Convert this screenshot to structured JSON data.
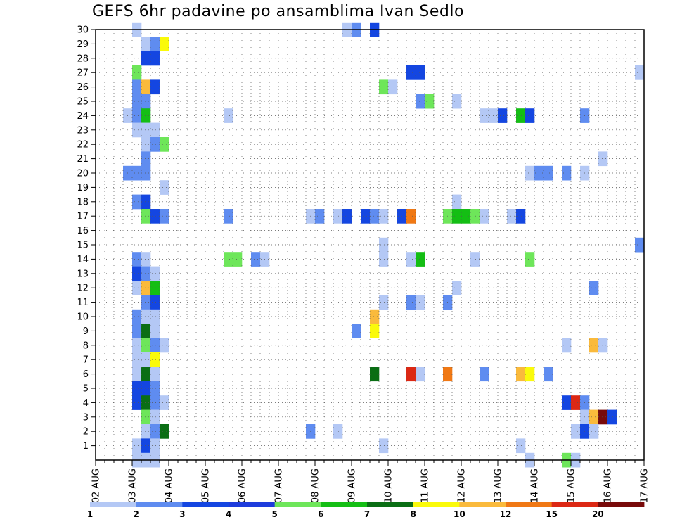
{
  "chart_data": {
    "type": "heatmap",
    "title": "GEFS 6hr padavine po ansamblima Ivan Sedlo",
    "xlabel": "",
    "ylabel": "",
    "x_ticks": [
      "02 AUG",
      "03 AUG",
      "04 AUG",
      "05 AUG",
      "06 AUG",
      "07 AUG",
      "08 AUG",
      "09 AUG",
      "10 AUG",
      "11 AUG",
      "12 AUG",
      "13 AUG",
      "14 AUG",
      "15 AUG",
      "16 AUG",
      "17 AUG"
    ],
    "x_range": [
      "02 AUG 00z",
      "17 AUG 00z"
    ],
    "y_ticks": [
      1,
      2,
      3,
      4,
      5,
      6,
      7,
      8,
      9,
      10,
      11,
      12,
      13,
      14,
      15,
      16,
      17,
      18,
      19,
      20,
      21,
      22,
      23,
      24,
      25,
      26,
      27,
      28,
      29,
      30
    ],
    "y_range": [
      0,
      30
    ],
    "time_step_hours": 6,
    "grid": "dotted",
    "colorbar": {
      "labels": [
        "1",
        "2",
        "3",
        "4",
        "5",
        "6",
        "7",
        "8",
        "10",
        "12",
        "15",
        "20"
      ],
      "colors": [
        "#b4c8f5",
        "#5f8cf0",
        "#1446e1",
        "#1e3cdc",
        "#6ee65a",
        "#14be14",
        "#0a6e14",
        "#fafa0a",
        "#faba3c",
        "#f07814",
        "#dc2814",
        "#780a0a"
      ]
    },
    "cells": [
      {
        "member": 30,
        "t": "03 AUG 00z",
        "level": 1
      },
      {
        "member": 30,
        "t": "08 AUG 18z",
        "level": 1
      },
      {
        "member": 30,
        "t": "09 AUG 00z",
        "level": 2
      },
      {
        "member": 30,
        "t": "09 AUG 12z",
        "level": 3
      },
      {
        "member": 29,
        "t": "03 AUG 06z",
        "level": 1
      },
      {
        "member": 29,
        "t": "03 AUG 12z",
        "level": 2
      },
      {
        "member": 29,
        "t": "03 AUG 18z",
        "level": 8
      },
      {
        "member": 28,
        "t": "03 AUG 06z",
        "level": 3
      },
      {
        "member": 28,
        "t": "03 AUG 12z",
        "level": 3
      },
      {
        "member": 27,
        "t": "03 AUG 00z",
        "level": 5
      },
      {
        "member": 27,
        "t": "10 AUG 12z",
        "level": 3
      },
      {
        "member": 27,
        "t": "10 AUG 18z",
        "level": 3
      },
      {
        "member": 27,
        "t": "16 AUG 18z",
        "level": 1
      },
      {
        "member": 26,
        "t": "03 AUG 00z",
        "level": 2
      },
      {
        "member": 26,
        "t": "03 AUG 06z",
        "level": 10
      },
      {
        "member": 26,
        "t": "03 AUG 12z",
        "level": 3
      },
      {
        "member": 26,
        "t": "09 AUG 18z",
        "level": 5
      },
      {
        "member": 26,
        "t": "10 AUG 00z",
        "level": 1
      },
      {
        "member": 25,
        "t": "03 AUG 00z",
        "level": 2
      },
      {
        "member": 25,
        "t": "03 AUG 06z",
        "level": 2
      },
      {
        "member": 25,
        "t": "10 AUG 18z",
        "level": 2
      },
      {
        "member": 25,
        "t": "11 AUG 00z",
        "level": 5
      },
      {
        "member": 25,
        "t": "11 AUG 18z",
        "level": 1
      },
      {
        "member": 24,
        "t": "02 AUG 18z",
        "level": 1
      },
      {
        "member": 24,
        "t": "03 AUG 00z",
        "level": 2
      },
      {
        "member": 24,
        "t": "03 AUG 06z",
        "level": 6
      },
      {
        "member": 24,
        "t": "05 AUG 12z",
        "level": 1
      },
      {
        "member": 24,
        "t": "12 AUG 12z",
        "level": 1
      },
      {
        "member": 24,
        "t": "12 AUG 18z",
        "level": 1
      },
      {
        "member": 24,
        "t": "13 AUG 00z",
        "level": 3
      },
      {
        "member": 24,
        "t": "13 AUG 12z",
        "level": 6
      },
      {
        "member": 24,
        "t": "13 AUG 18z",
        "level": 3
      },
      {
        "member": 24,
        "t": "15 AUG 06z",
        "level": 2
      },
      {
        "member": 23,
        "t": "03 AUG 00z",
        "level": 1
      },
      {
        "member": 23,
        "t": "03 AUG 06z",
        "level": 1
      },
      {
        "member": 23,
        "t": "03 AUG 12z",
        "level": 1
      },
      {
        "member": 22,
        "t": "03 AUG 06z",
        "level": 1
      },
      {
        "member": 22,
        "t": "03 AUG 12z",
        "level": 2
      },
      {
        "member": 22,
        "t": "03 AUG 18z",
        "level": 5
      },
      {
        "member": 21,
        "t": "03 AUG 06z",
        "level": 2
      },
      {
        "member": 21,
        "t": "15 AUG 18z",
        "level": 1
      },
      {
        "member": 20,
        "t": "02 AUG 18z",
        "level": 2
      },
      {
        "member": 20,
        "t": "03 AUG 00z",
        "level": 2
      },
      {
        "member": 20,
        "t": "03 AUG 06z",
        "level": 2
      },
      {
        "member": 20,
        "t": "13 AUG 18z",
        "level": 1
      },
      {
        "member": 20,
        "t": "14 AUG 00z",
        "level": 2
      },
      {
        "member": 20,
        "t": "14 AUG 06z",
        "level": 2
      },
      {
        "member": 20,
        "t": "14 AUG 18z",
        "level": 2
      },
      {
        "member": 20,
        "t": "15 AUG 06z",
        "level": 1
      },
      {
        "member": 19,
        "t": "03 AUG 18z",
        "level": 1
      },
      {
        "member": 18,
        "t": "03 AUG 00z",
        "level": 2
      },
      {
        "member": 18,
        "t": "03 AUG 06z",
        "level": 3
      },
      {
        "member": 18,
        "t": "11 AUG 18z",
        "level": 1
      },
      {
        "member": 17,
        "t": "03 AUG 06z",
        "level": 5
      },
      {
        "member": 17,
        "t": "03 AUG 12z",
        "level": 3
      },
      {
        "member": 17,
        "t": "03 AUG 18z",
        "level": 2
      },
      {
        "member": 17,
        "t": "05 AUG 12z",
        "level": 2
      },
      {
        "member": 17,
        "t": "07 AUG 18z",
        "level": 1
      },
      {
        "member": 17,
        "t": "08 AUG 00z",
        "level": 2
      },
      {
        "member": 17,
        "t": "08 AUG 12z",
        "level": 1
      },
      {
        "member": 17,
        "t": "08 AUG 18z",
        "level": 3
      },
      {
        "member": 17,
        "t": "09 AUG 06z",
        "level": 3
      },
      {
        "member": 17,
        "t": "09 AUG 12z",
        "level": 2
      },
      {
        "member": 17,
        "t": "09 AUG 18z",
        "level": 1
      },
      {
        "member": 17,
        "t": "10 AUG 06z",
        "level": 3
      },
      {
        "member": 17,
        "t": "10 AUG 12z",
        "level": 12
      },
      {
        "member": 17,
        "t": "11 AUG 12z",
        "level": 5
      },
      {
        "member": 17,
        "t": "11 AUG 18z",
        "level": 6
      },
      {
        "member": 17,
        "t": "12 AUG 00z",
        "level": 6
      },
      {
        "member": 17,
        "t": "12 AUG 06z",
        "level": 5
      },
      {
        "member": 17,
        "t": "12 AUG 12z",
        "level": 1
      },
      {
        "member": 17,
        "t": "13 AUG 06z",
        "level": 1
      },
      {
        "member": 17,
        "t": "13 AUG 12z",
        "level": 3
      },
      {
        "member": 15,
        "t": "09 AUG 18z",
        "level": 1
      },
      {
        "member": 15,
        "t": "16 AUG 18z",
        "level": 2
      },
      {
        "member": 14,
        "t": "03 AUG 00z",
        "level": 2
      },
      {
        "member": 14,
        "t": "03 AUG 06z",
        "level": 1
      },
      {
        "member": 14,
        "t": "05 AUG 12z",
        "level": 5
      },
      {
        "member": 14,
        "t": "05 AUG 18z",
        "level": 5
      },
      {
        "member": 14,
        "t": "06 AUG 06z",
        "level": 2
      },
      {
        "member": 14,
        "t": "06 AUG 12z",
        "level": 1
      },
      {
        "member": 14,
        "t": "09 AUG 18z",
        "level": 1
      },
      {
        "member": 14,
        "t": "10 AUG 12z",
        "level": 1
      },
      {
        "member": 14,
        "t": "10 AUG 18z",
        "level": 6
      },
      {
        "member": 14,
        "t": "12 AUG 06z",
        "level": 1
      },
      {
        "member": 14,
        "t": "13 AUG 18z",
        "level": 5
      },
      {
        "member": 13,
        "t": "03 AUG 00z",
        "level": 3
      },
      {
        "member": 13,
        "t": "03 AUG 06z",
        "level": 2
      },
      {
        "member": 13,
        "t": "03 AUG 12z",
        "level": 1
      },
      {
        "member": 12,
        "t": "03 AUG 00z",
        "level": 1
      },
      {
        "member": 12,
        "t": "03 AUG 06z",
        "level": 10
      },
      {
        "member": 12,
        "t": "03 AUG 12z",
        "level": 6
      },
      {
        "member": 12,
        "t": "11 AUG 18z",
        "level": 1
      },
      {
        "member": 12,
        "t": "15 AUG 12z",
        "level": 2
      },
      {
        "member": 11,
        "t": "03 AUG 06z",
        "level": 2
      },
      {
        "member": 11,
        "t": "03 AUG 12z",
        "level": 3
      },
      {
        "member": 11,
        "t": "09 AUG 18z",
        "level": 1
      },
      {
        "member": 11,
        "t": "10 AUG 12z",
        "level": 2
      },
      {
        "member": 11,
        "t": "10 AUG 18z",
        "level": 1
      },
      {
        "member": 11,
        "t": "11 AUG 12z",
        "level": 2
      },
      {
        "member": 10,
        "t": "03 AUG 00z",
        "level": 2
      },
      {
        "member": 10,
        "t": "03 AUG 06z",
        "level": 1
      },
      {
        "member": 10,
        "t": "03 AUG 12z",
        "level": 1
      },
      {
        "member": 10,
        "t": "09 AUG 12z",
        "level": 10
      },
      {
        "member": 9,
        "t": "03 AUG 00z",
        "level": 2
      },
      {
        "member": 9,
        "t": "03 AUG 06z",
        "level": 7
      },
      {
        "member": 9,
        "t": "03 AUG 12z",
        "level": 1
      },
      {
        "member": 9,
        "t": "09 AUG 00z",
        "level": 2
      },
      {
        "member": 9,
        "t": "09 AUG 12z",
        "level": 8
      },
      {
        "member": 8,
        "t": "03 AUG 00z",
        "level": 1
      },
      {
        "member": 8,
        "t": "03 AUG 06z",
        "level": 5
      },
      {
        "member": 8,
        "t": "03 AUG 12z",
        "level": 2
      },
      {
        "member": 8,
        "t": "03 AUG 18z",
        "level": 1
      },
      {
        "member": 8,
        "t": "14 AUG 18z",
        "level": 1
      },
      {
        "member": 8,
        "t": "15 AUG 12z",
        "level": 10
      },
      {
        "member": 8,
        "t": "15 AUG 18z",
        "level": 1
      },
      {
        "member": 7,
        "t": "03 AUG 00z",
        "level": 1
      },
      {
        "member": 7,
        "t": "03 AUG 06z",
        "level": 1
      },
      {
        "member": 7,
        "t": "03 AUG 12z",
        "level": 8
      },
      {
        "member": 6,
        "t": "03 AUG 00z",
        "level": 1
      },
      {
        "member": 6,
        "t": "03 AUG 06z",
        "level": 7
      },
      {
        "member": 6,
        "t": "03 AUG 12z",
        "level": 1
      },
      {
        "member": 6,
        "t": "09 AUG 12z",
        "level": 7
      },
      {
        "member": 6,
        "t": "10 AUG 12z",
        "level": 15
      },
      {
        "member": 6,
        "t": "10 AUG 18z",
        "level": 1
      },
      {
        "member": 6,
        "t": "11 AUG 12z",
        "level": 12
      },
      {
        "member": 6,
        "t": "12 AUG 12z",
        "level": 2
      },
      {
        "member": 6,
        "t": "13 AUG 12z",
        "level": 10
      },
      {
        "member": 6,
        "t": "13 AUG 18z",
        "level": 8
      },
      {
        "member": 6,
        "t": "14 AUG 06z",
        "level": 2
      },
      {
        "member": 5,
        "t": "03 AUG 00z",
        "level": 3
      },
      {
        "member": 5,
        "t": "03 AUG 06z",
        "level": 3
      },
      {
        "member": 5,
        "t": "03 AUG 12z",
        "level": 2
      },
      {
        "member": 4,
        "t": "03 AUG 00z",
        "level": 3
      },
      {
        "member": 4,
        "t": "03 AUG 06z",
        "level": 7
      },
      {
        "member": 4,
        "t": "03 AUG 12z",
        "level": 2
      },
      {
        "member": 4,
        "t": "03 AUG 18z",
        "level": 1
      },
      {
        "member": 4,
        "t": "14 AUG 18z",
        "level": 3
      },
      {
        "member": 4,
        "t": "15 AUG 00z",
        "level": 15
      },
      {
        "member": 4,
        "t": "15 AUG 06z",
        "level": 2
      },
      {
        "member": 3,
        "t": "03 AUG 06z",
        "level": 5
      },
      {
        "member": 3,
        "t": "03 AUG 12z",
        "level": 1
      },
      {
        "member": 3,
        "t": "15 AUG 06z",
        "level": 1
      },
      {
        "member": 3,
        "t": "15 AUG 12z",
        "level": 10
      },
      {
        "member": 3,
        "t": "15 AUG 18z",
        "level": 20
      },
      {
        "member": 3,
        "t": "16 AUG 00z",
        "level": 3
      },
      {
        "member": 2,
        "t": "03 AUG 06z",
        "level": 1
      },
      {
        "member": 2,
        "t": "03 AUG 12z",
        "level": 2
      },
      {
        "member": 2,
        "t": "03 AUG 18z",
        "level": 7
      },
      {
        "member": 2,
        "t": "07 AUG 18z",
        "level": 2
      },
      {
        "member": 2,
        "t": "08 AUG 12z",
        "level": 1
      },
      {
        "member": 2,
        "t": "15 AUG 00z",
        "level": 1
      },
      {
        "member": 2,
        "t": "15 AUG 06z",
        "level": 3
      },
      {
        "member": 2,
        "t": "15 AUG 12z",
        "level": 1
      },
      {
        "member": 1,
        "t": "03 AUG 00z",
        "level": 1
      },
      {
        "member": 1,
        "t": "03 AUG 06z",
        "level": 3
      },
      {
        "member": 1,
        "t": "03 AUG 12z",
        "level": 1
      },
      {
        "member": 1,
        "t": "09 AUG 18z",
        "level": 1
      },
      {
        "member": 1,
        "t": "13 AUG 12z",
        "level": 1
      },
      {
        "member": 0,
        "t": "03 AUG 00z",
        "level": 1
      },
      {
        "member": 0,
        "t": "03 AUG 06z",
        "level": 1
      },
      {
        "member": 0,
        "t": "03 AUG 12z",
        "level": 1
      },
      {
        "member": 0,
        "t": "13 AUG 18z",
        "level": 1
      },
      {
        "member": 0,
        "t": "14 AUG 18z",
        "level": 5
      },
      {
        "member": 0,
        "t": "15 AUG 00z",
        "level": 1
      }
    ]
  }
}
